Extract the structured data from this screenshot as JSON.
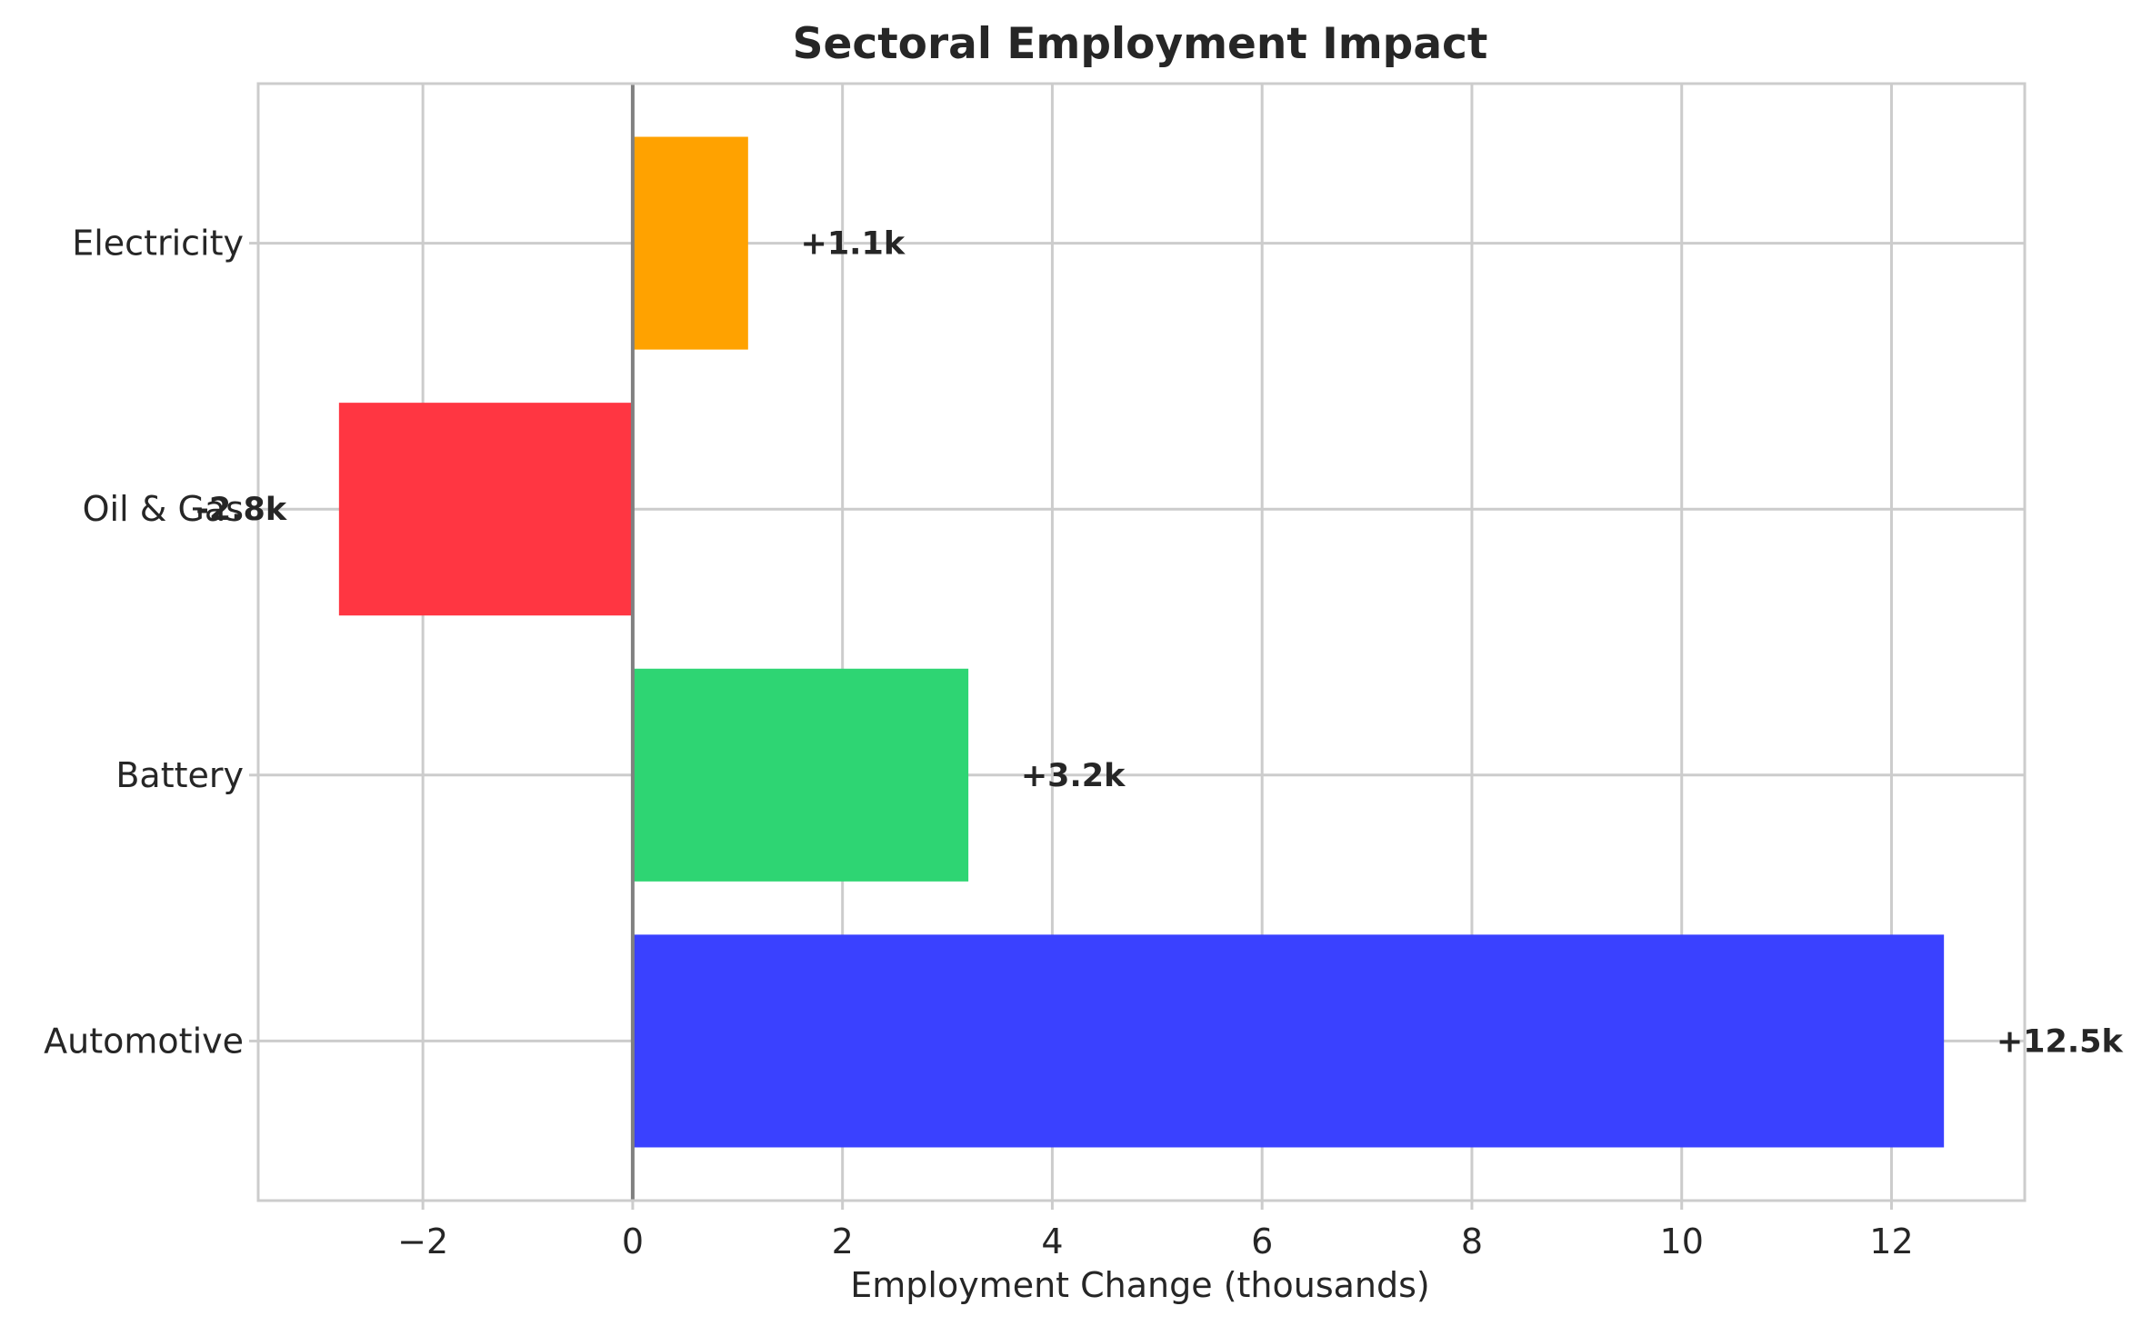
{
  "chart_data": {
    "type": "bar",
    "orientation": "horizontal",
    "title": "Sectoral Employment Impact",
    "xlabel": "Employment Change (thousands)",
    "ylabel": "",
    "categories": [
      "Automotive",
      "Battery",
      "Oil & Gas",
      "Electricity"
    ],
    "values": [
      12.5,
      3.2,
      -2.8,
      1.1
    ],
    "data_labels": [
      "+12.5k",
      "+3.2k",
      "-2.8k",
      "+1.1k"
    ],
    "colors": [
      "#3a41ff",
      "#2ed573",
      "#ff3642",
      "#ffa200"
    ],
    "xlim": [
      -3.57,
      13.27
    ],
    "xticks": [
      -2,
      0,
      2,
      4,
      6,
      8,
      10,
      12
    ],
    "xtick_labels": [
      "−2",
      "0",
      "2",
      "4",
      "6",
      "8",
      "10",
      "12"
    ],
    "grid": true,
    "zero_line": true,
    "grid_color": "#cccccc",
    "zero_line_color": "#808080"
  }
}
